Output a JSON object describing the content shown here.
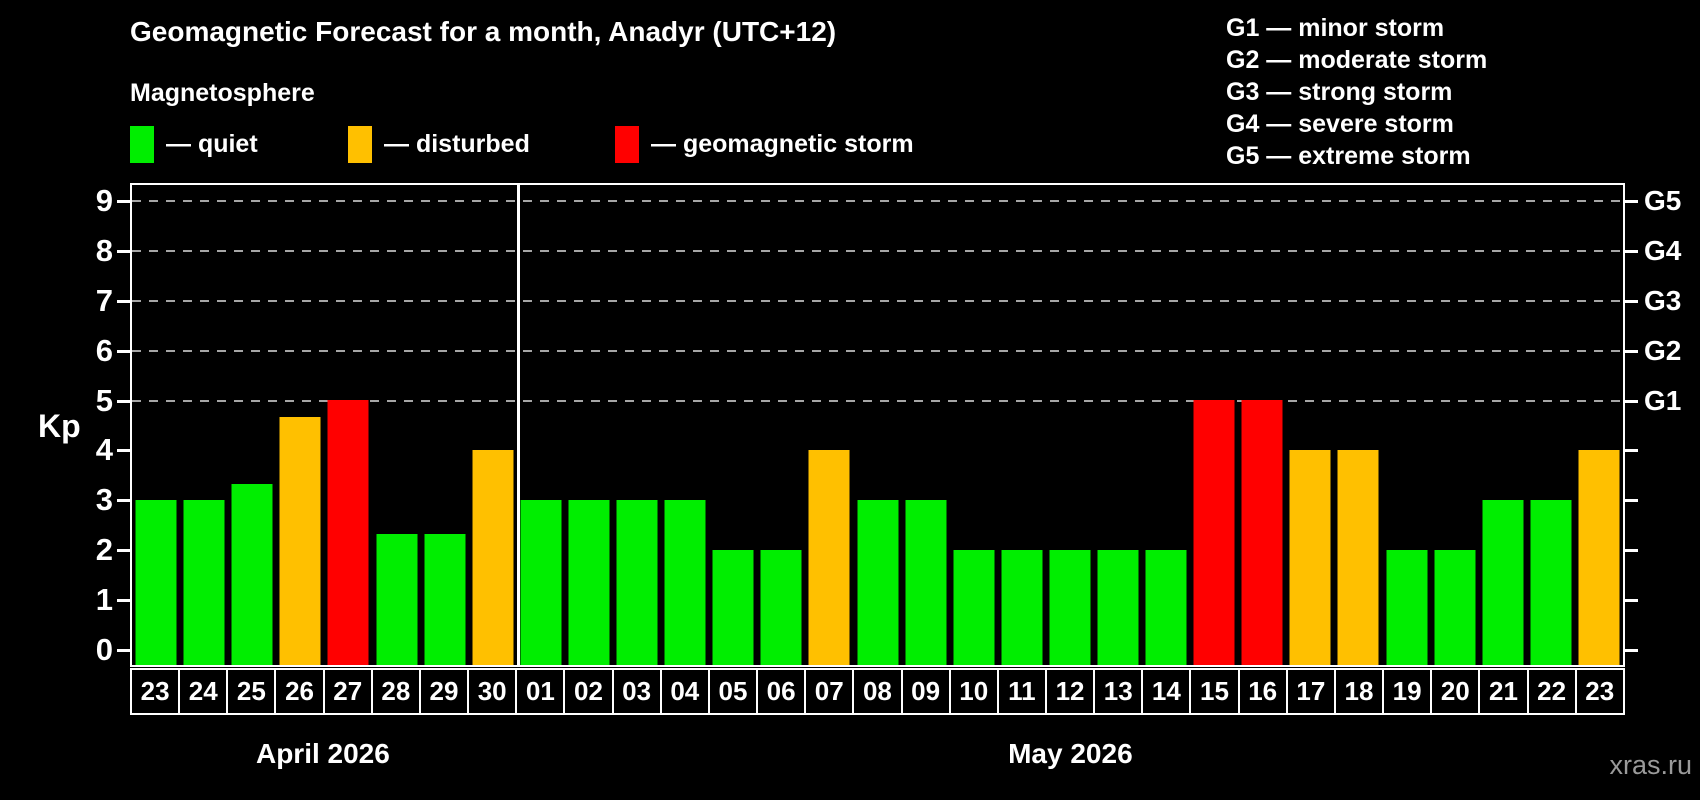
{
  "title": "Geomagnetic Forecast for a month, Anadyr (UTC+12)",
  "subtitle": "Magnetosphere",
  "watermark": "xras.ru",
  "colors": {
    "quiet": "#00ee00",
    "disturbed": "#ffc000",
    "storm": "#ff0000",
    "background": "#000000",
    "axis": "#ffffff",
    "grid": "#a6a6a6",
    "watermark": "#9a9a9a"
  },
  "legend": [
    {
      "status": "quiet",
      "label": "— quiet"
    },
    {
      "status": "disturbed",
      "label": "— disturbed"
    },
    {
      "status": "storm",
      "label": "— geomagnetic storm"
    }
  ],
  "storm_scale": [
    {
      "code": "G1",
      "description": "minor storm",
      "kp": 5
    },
    {
      "code": "G2",
      "description": "moderate storm",
      "kp": 6
    },
    {
      "code": "G3",
      "description": "strong storm",
      "kp": 7
    },
    {
      "code": "G4",
      "description": "severe storm",
      "kp": 8
    },
    {
      "code": "G5",
      "description": "extreme storm",
      "kp": 9
    }
  ],
  "chart_data": {
    "type": "bar",
    "title": "Geomagnetic Forecast for a month, Anadyr (UTC+12)",
    "ylabel": "Kp",
    "ylim": [
      0,
      9
    ],
    "yticks": [
      0,
      1,
      2,
      3,
      4,
      5,
      6,
      7,
      8,
      9
    ],
    "gridlines_at_kp": [
      5,
      6,
      7,
      8,
      9
    ],
    "grid": "dashed",
    "legend_position": "top",
    "right_axis": [
      {
        "kp": 5,
        "label": "G1"
      },
      {
        "kp": 6,
        "label": "G2"
      },
      {
        "kp": 7,
        "label": "G3"
      },
      {
        "kp": 8,
        "label": "G4"
      },
      {
        "kp": 9,
        "label": "G5"
      }
    ],
    "months": [
      {
        "label": "April 2026",
        "days": 8
      },
      {
        "label": "May 2026",
        "days": 23
      }
    ],
    "bars": [
      {
        "day": "23",
        "kp": 3.0,
        "status": "quiet"
      },
      {
        "day": "24",
        "kp": 3.0,
        "status": "quiet"
      },
      {
        "day": "25",
        "kp": 3.33,
        "status": "quiet"
      },
      {
        "day": "26",
        "kp": 4.67,
        "status": "disturbed"
      },
      {
        "day": "27",
        "kp": 5.0,
        "status": "storm"
      },
      {
        "day": "28",
        "kp": 2.33,
        "status": "quiet"
      },
      {
        "day": "29",
        "kp": 2.33,
        "status": "quiet"
      },
      {
        "day": "30",
        "kp": 4.0,
        "status": "disturbed"
      },
      {
        "day": "01",
        "kp": 3.0,
        "status": "quiet"
      },
      {
        "day": "02",
        "kp": 3.0,
        "status": "quiet"
      },
      {
        "day": "03",
        "kp": 3.0,
        "status": "quiet"
      },
      {
        "day": "04",
        "kp": 3.0,
        "status": "quiet"
      },
      {
        "day": "05",
        "kp": 2.0,
        "status": "quiet"
      },
      {
        "day": "06",
        "kp": 2.0,
        "status": "quiet"
      },
      {
        "day": "07",
        "kp": 4.0,
        "status": "disturbed"
      },
      {
        "day": "08",
        "kp": 3.0,
        "status": "quiet"
      },
      {
        "day": "09",
        "kp": 3.0,
        "status": "quiet"
      },
      {
        "day": "10",
        "kp": 2.0,
        "status": "quiet"
      },
      {
        "day": "11",
        "kp": 2.0,
        "status": "quiet"
      },
      {
        "day": "12",
        "kp": 2.0,
        "status": "quiet"
      },
      {
        "day": "13",
        "kp": 2.0,
        "status": "quiet"
      },
      {
        "day": "14",
        "kp": 2.0,
        "status": "quiet"
      },
      {
        "day": "15",
        "kp": 5.0,
        "status": "storm"
      },
      {
        "day": "16",
        "kp": 5.0,
        "status": "storm"
      },
      {
        "day": "17",
        "kp": 4.0,
        "status": "disturbed"
      },
      {
        "day": "18",
        "kp": 4.0,
        "status": "disturbed"
      },
      {
        "day": "19",
        "kp": 2.0,
        "status": "quiet"
      },
      {
        "day": "20",
        "kp": 2.0,
        "status": "quiet"
      },
      {
        "day": "21",
        "kp": 3.0,
        "status": "quiet"
      },
      {
        "day": "22",
        "kp": 3.0,
        "status": "quiet"
      },
      {
        "day": "23",
        "kp": 4.0,
        "status": "disturbed"
      }
    ]
  }
}
